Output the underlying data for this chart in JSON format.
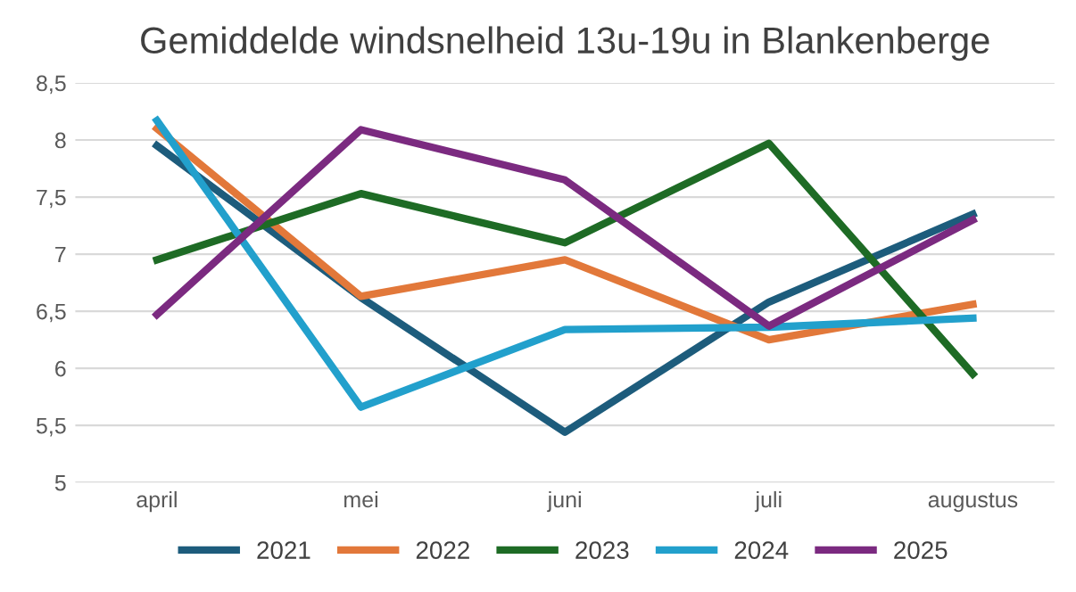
{
  "chart_data": {
    "type": "line",
    "title": "Gemiddelde windsnelheid 13u-19u in Blankenberge",
    "categories": [
      "april",
      "mei",
      "juni",
      "juli",
      "augustus"
    ],
    "series": [
      {
        "name": "2021",
        "color": "#1d5c7c",
        "values": [
          7.95,
          6.62,
          5.44,
          6.58,
          7.35
        ]
      },
      {
        "name": "2022",
        "color": "#e2783a",
        "values": [
          8.1,
          6.63,
          6.95,
          6.25,
          6.56
        ]
      },
      {
        "name": "2023",
        "color": "#1e6b25",
        "values": [
          6.95,
          7.53,
          7.1,
          7.97,
          5.95
        ]
      },
      {
        "name": "2024",
        "color": "#22a0cc",
        "values": [
          8.17,
          5.66,
          6.34,
          6.36,
          6.44
        ]
      },
      {
        "name": "2025",
        "color": "#7b2a80",
        "values": [
          6.47,
          8.09,
          7.65,
          6.37,
          7.3
        ]
      }
    ],
    "ylim": [
      5,
      8.5
    ],
    "yticks": [
      {
        "value": 5,
        "label": "5"
      },
      {
        "value": 5.5,
        "label": "5,5"
      },
      {
        "value": 6,
        "label": "6"
      },
      {
        "value": 6.5,
        "label": "6,5"
      },
      {
        "value": 7,
        "label": "7"
      },
      {
        "value": 7.5,
        "label": "7,5"
      },
      {
        "value": 8,
        "label": "8"
      },
      {
        "value": 8.5,
        "label": "8,5"
      }
    ],
    "grid": "y",
    "legend": "bottom",
    "marker": "none",
    "line_style": "solid"
  }
}
